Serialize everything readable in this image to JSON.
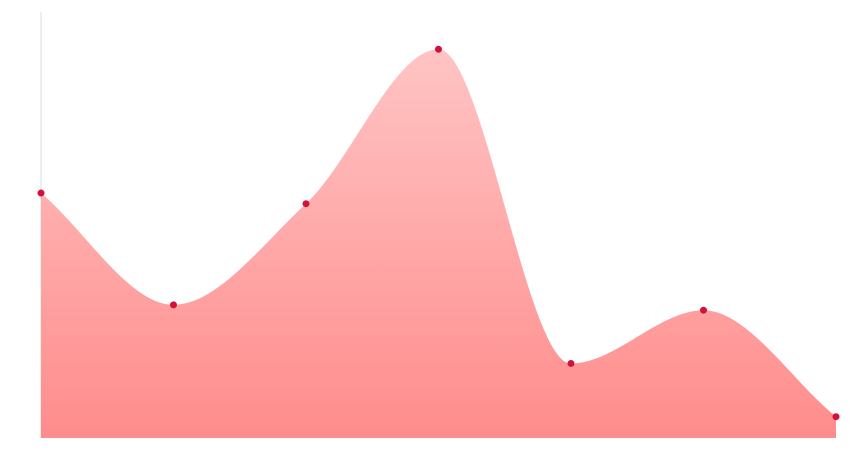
{
  "chart_data": {
    "type": "area",
    "x": [
      0,
      1,
      2,
      3,
      4,
      5,
      6
    ],
    "values": [
      46,
      25,
      44,
      73,
      14,
      24,
      4
    ],
    "ylim": [
      0,
      80
    ],
    "smooth": true,
    "grid": false,
    "legend": "none",
    "colors": {
      "fill_top": "#ffc4c4",
      "fill_bottom": "#ff8c8c",
      "point": "#d4113a",
      "axis": "#dddddd"
    }
  }
}
